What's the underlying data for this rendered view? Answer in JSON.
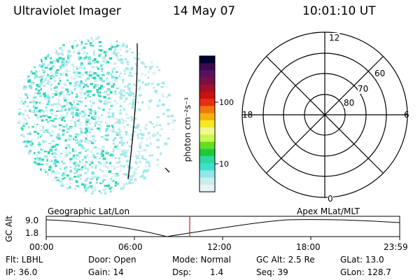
{
  "header": {
    "title": "Ultraviolet Imager",
    "date": "14 May 07",
    "time": "10:01:10 UT"
  },
  "colorbar": {
    "unit_label": "photon cm⁻²s⁻¹",
    "ticks": [
      "100",
      "10"
    ],
    "colors": [
      "#000033",
      "#3a0a4a",
      "#5a1060",
      "#7a1040",
      "#a0102a",
      "#cc1010",
      "#e83010",
      "#f07a10",
      "#f8b010",
      "#f8e820",
      "#f0f890",
      "#c8f850",
      "#60e020",
      "#20c840",
      "#30d8a0",
      "#40e0d0",
      "#90e8e8",
      "#c8eef0",
      "#e6f3f4"
    ]
  },
  "polar_grid": {
    "mlt_labels": [
      "12",
      "18",
      "6",
      "0"
    ],
    "lat_labels": [
      "60",
      "70",
      "80"
    ]
  },
  "timeline": {
    "left_label": "Geographic Lat/Lon",
    "right_label": "Apex MLat/MLT",
    "y_axis_label": "GC Alt",
    "y_ticks": [
      "9.0",
      "1.8"
    ],
    "x_ticks": [
      "00:00",
      "06:00",
      "12:00",
      "18:00",
      "23:59"
    ],
    "marker_color": "#cc2222"
  },
  "info": {
    "flt": "Flt: LBHL",
    "door": "Door: Open",
    "mode": "Mode: Normal",
    "gc_alt": "GC Alt: 2.5 Re",
    "glat": "GLat:  13.0",
    "ip": "IP: 36.0",
    "gain": "Gain: 14",
    "dsp_label": "Dsp:",
    "dsp_value": "1.4",
    "seq": "Seq: 39",
    "glon": "GLon: 128.7"
  }
}
